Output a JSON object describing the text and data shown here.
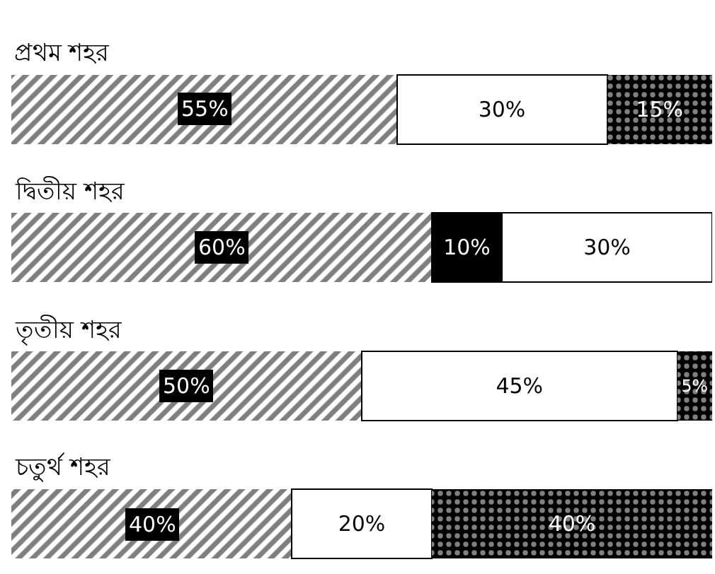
{
  "chart_data": {
    "type": "bar",
    "orientation": "horizontal",
    "stacked": true,
    "tick_labels": false,
    "categories": [
      "প্রথম শহর",
      "দ্বিতীয় শহর",
      "তৃতীয় শহর",
      "চতুর্থ শহর"
    ],
    "xlim": [
      0,
      100
    ],
    "series": [
      {
        "color": "#000000",
        "values": [
          55,
          60,
          50,
          40
        ],
        "value_labels": [
          "55%",
          "60%",
          "50%",
          "40%"
        ]
      },
      {
        "color": "#000000",
        "values": [
          null,
          10,
          null,
          null
        ],
        "value_labels": [
          null,
          "10%",
          null,
          null
        ]
      },
      {
        "color": "#ffffff",
        "values": [
          30,
          30,
          45,
          20
        ],
        "value_labels": [
          "30%",
          "30%",
          "45%",
          "20%"
        ]
      },
      {
        "color": "#000000",
        "values": [
          15,
          null,
          5,
          40
        ],
        "value_labels": [
          "15%",
          null,
          "5%",
          "40%"
        ]
      }
    ]
  }
}
